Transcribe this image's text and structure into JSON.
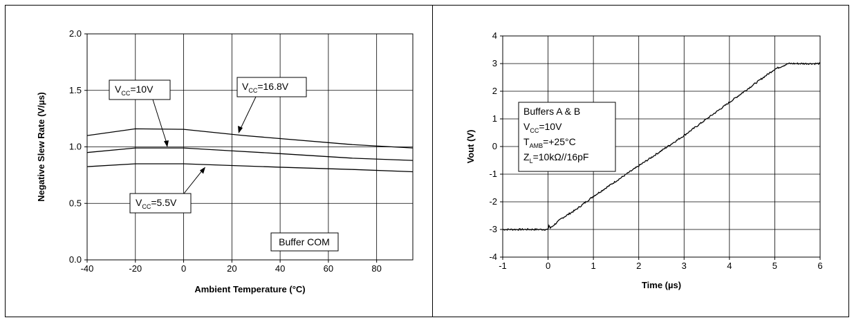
{
  "chart_data": [
    {
      "type": "line",
      "xlabel": "Ambient Temperature (°C)",
      "ylabel": "Negative Slew Rate (V/µs)",
      "xlim": [
        -40,
        95
      ],
      "ylim": [
        0.0,
        2.0
      ],
      "xticks": [
        "-40",
        "-20",
        "0",
        "20",
        "40",
        "60",
        "80"
      ],
      "yticks": [
        "0.0",
        "0.5",
        "1.0",
        "1.5",
        "2.0"
      ],
      "grid": true,
      "series": [
        {
          "label": "VCC=16.8V",
          "x": [
            -40,
            -20,
            0,
            25,
            70,
            95
          ],
          "y": [
            1.1,
            1.16,
            1.155,
            1.1,
            1.02,
            0.99
          ]
        },
        {
          "label": "VCC=10V",
          "x": [
            -40,
            -20,
            0,
            20,
            40,
            70,
            95
          ],
          "y": [
            0.95,
            0.99,
            0.99,
            0.965,
            0.94,
            0.9,
            0.88
          ]
        },
        {
          "label": "VCC=5.5V",
          "x": [
            -40,
            -20,
            0,
            20,
            40,
            70,
            95
          ],
          "y": [
            0.825,
            0.85,
            0.85,
            0.835,
            0.82,
            0.8,
            0.78
          ]
        }
      ],
      "annotations": {
        "vcc10": {
          "prefix": "V",
          "sub": "CC",
          "suffix": "=10V"
        },
        "vcc168": {
          "prefix": "V",
          "sub": "CC",
          "suffix": "=16.8V"
        },
        "vcc55": {
          "prefix": "V",
          "sub": "CC",
          "suffix": "=5.5V"
        },
        "box_label": "Buffer COM"
      }
    },
    {
      "type": "line",
      "xlabel": "Time (µs)",
      "ylabel": "Vout (V)",
      "xlim": [
        -1,
        6
      ],
      "ylim": [
        -4,
        4
      ],
      "xticks": [
        "-1",
        "0",
        "1",
        "2",
        "3",
        "4",
        "5",
        "6"
      ],
      "yticks": [
        "-4",
        "-3",
        "-2",
        "-1",
        "0",
        "1",
        "2",
        "3",
        "4"
      ],
      "grid": true,
      "series": [
        {
          "x": [
            -1,
            -0.5,
            0.0,
            0.02,
            0.05,
            0.3,
            0.6,
            1.0,
            2.0,
            3.0,
            4.0,
            5.0,
            5.3,
            5.6,
            6.0
          ],
          "y": [
            -3.0,
            -3.0,
            -3.0,
            -2.85,
            -2.95,
            -2.6,
            -2.3,
            -1.8,
            -0.7,
            0.4,
            1.6,
            2.8,
            3.0,
            3.0,
            3.0
          ]
        }
      ],
      "annotations": {
        "line1": "Buffers A & B",
        "vcc": {
          "prefix": "V",
          "sub": "CC",
          "suffix": "=10V"
        },
        "tamb": {
          "prefix": "T",
          "sub": "AMB",
          "suffix": "=+25°C"
        },
        "zl": {
          "prefix": "Z",
          "sub": "L",
          "suffix": "=10kΩ//16pF"
        }
      }
    }
  ]
}
